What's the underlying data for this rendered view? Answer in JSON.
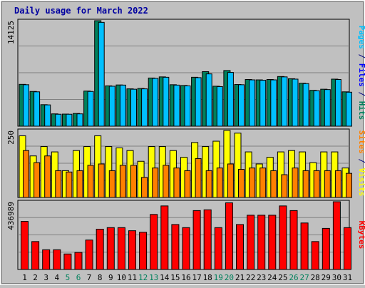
{
  "chart_data": {
    "type": "bar",
    "title": "Daily usage for March 2022",
    "days": [
      "1",
      "2",
      "3",
      "4",
      "5",
      "6",
      "7",
      "8",
      "9",
      "10",
      "11",
      "12",
      "13",
      "14",
      "15",
      "16",
      "17",
      "18",
      "19",
      "20",
      "21",
      "22",
      "23",
      "24",
      "25",
      "26",
      "27",
      "28",
      "29",
      "30",
      "31"
    ],
    "weekend_days": [
      "5",
      "6",
      "12",
      "13",
      "19",
      "20",
      "26",
      "27"
    ],
    "panels": [
      {
        "id": "hits-files-pages",
        "max_label": "14125",
        "max_value": 14125,
        "series": [
          {
            "name": "Hits",
            "color": "#00805c",
            "values": [
              5600,
              4650,
              2880,
              1650,
              1620,
              1700,
              4700,
              14125,
              5400,
              5520,
              5000,
              5050,
              6450,
              6600,
              5550,
              5450,
              6550,
              7300,
              5350,
              7450,
              5580,
              6250,
              6200,
              6250,
              6650,
              6350,
              5750,
              4800,
              4950,
              6300,
              4600
            ]
          },
          {
            "name": "Files",
            "color": "#0000ff",
            "values": []
          },
          {
            "name": "Pages",
            "color": "#00c0ff",
            "values": [
              5550,
              4600,
              2850,
              1600,
              1600,
              1650,
              4650,
              13900,
              5350,
              5500,
              4950,
              5000,
              6400,
              6550,
              5500,
              5400,
              6500,
              7000,
              5300,
              7200,
              5550,
              6200,
              6150,
              6200,
              6600,
              6300,
              5700,
              4750,
              4900,
              6250,
              4550
            ]
          }
        ],
        "axis_label": {
          "parts": [
            {
              "text": "Pages",
              "color": "#00c0ff"
            },
            {
              "text": " / ",
              "color": "#000080"
            },
            {
              "text": "Files",
              "color": "#0000ff"
            },
            {
              "text": " / ",
              "color": "#000080"
            },
            {
              "text": "Hits",
              "color": "#00805c"
            }
          ]
        }
      },
      {
        "id": "visits-sites",
        "max_label": "250",
        "max_value": 250,
        "series": [
          {
            "name": "Visits",
            "color": "#ffff00",
            "values": [
              230,
              155,
              190,
              170,
              100,
              175,
              190,
              230,
              190,
              185,
              175,
              135,
              190,
              190,
              175,
              150,
              205,
              190,
              210,
              250,
              240,
              170,
              125,
              150,
              170,
              175,
              170,
              130,
              170,
              170,
              110
            ]
          },
          {
            "name": "Sites",
            "color": "#ff8000",
            "values": [
              175,
              130,
              155,
              100,
              95,
              100,
              120,
              125,
              100,
              120,
              120,
              75,
              110,
              120,
              110,
              100,
              145,
              100,
              110,
              125,
              105,
              110,
              110,
              100,
              85,
              110,
              100,
              100,
              100,
              100,
              90
            ]
          }
        ],
        "axis_label": {
          "parts": [
            {
              "text": "Sites",
              "color": "#ff8000"
            },
            {
              "text": " / ",
              "color": "#000080"
            },
            {
              "text": "Visits",
              "color": "#ffff00"
            }
          ]
        }
      },
      {
        "id": "kbytes",
        "max_label": "436989",
        "max_value": 436989,
        "series": [
          {
            "name": "KBytes",
            "color": "#ff0000",
            "values": [
              310000,
              180000,
              127000,
              127000,
              100000,
              110000,
              190000,
              260000,
              270000,
              270000,
              250000,
              240000,
              355000,
              410000,
              290000,
              270000,
              380000,
              385000,
              270000,
              430000,
              290000,
              350000,
              350000,
              350000,
              410000,
              380000,
              300000,
              180000,
              265000,
              436989,
              270000
            ]
          }
        ],
        "axis_label": {
          "parts": [
            {
              "text": "KBytes",
              "color": "#ff0000"
            }
          ]
        }
      }
    ]
  }
}
